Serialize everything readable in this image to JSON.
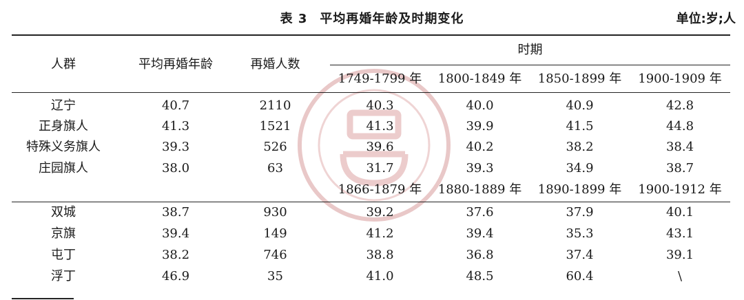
{
  "caption": {
    "table_no": "表 3",
    "title": "平均再婚年龄及时期变化",
    "unit": "单位:岁;人"
  },
  "headers": {
    "group": "人群",
    "avg_age": "平均再婚年龄",
    "count": "再婚人数",
    "period": "时期",
    "periods_a": [
      "1749-1799 年",
      "1800-1849 年",
      "1850-1899 年",
      "1900-1909 年"
    ],
    "periods_b": [
      "1866-1879 年",
      "1880-1889 年",
      "1890-1899 年",
      "1900-1912 年"
    ]
  },
  "rows_a": [
    {
      "group": "辽宁",
      "avg": "40.7",
      "count": "2110",
      "p": [
        "40.3",
        "40.0",
        "40.9",
        "42.8"
      ]
    },
    {
      "group": "正身旗人",
      "avg": "41.3",
      "count": "1521",
      "p": [
        "41.3",
        "39.9",
        "41.5",
        "44.8"
      ]
    },
    {
      "group": "特殊义务旗人",
      "avg": "39.3",
      "count": "526",
      "p": [
        "39.6",
        "40.2",
        "38.2",
        "38.4"
      ]
    },
    {
      "group": "庄园旗人",
      "avg": "38.0",
      "count": "63",
      "p": [
        "31.7",
        "39.3",
        "34.9",
        "38.7"
      ]
    }
  ],
  "rows_b": [
    {
      "group": "双城",
      "avg": "38.7",
      "count": "930",
      "p": [
        "39.2",
        "37.6",
        "37.9",
        "40.1"
      ]
    },
    {
      "group": "京旗",
      "avg": "39.4",
      "count": "149",
      "p": [
        "41.2",
        "39.4",
        "35.3",
        "43.1"
      ]
    },
    {
      "group": "屯丁",
      "avg": "38.2",
      "count": "746",
      "p": [
        "38.8",
        "36.8",
        "37.4",
        "39.1"
      ]
    },
    {
      "group": "浮丁",
      "avg": "46.9",
      "count": "35",
      "p": [
        "41.0",
        "48.5",
        "60.4",
        "\\"
      ]
    }
  ],
  "colors": {
    "rule": "#222222",
    "watermark": "#d9a3a3"
  }
}
